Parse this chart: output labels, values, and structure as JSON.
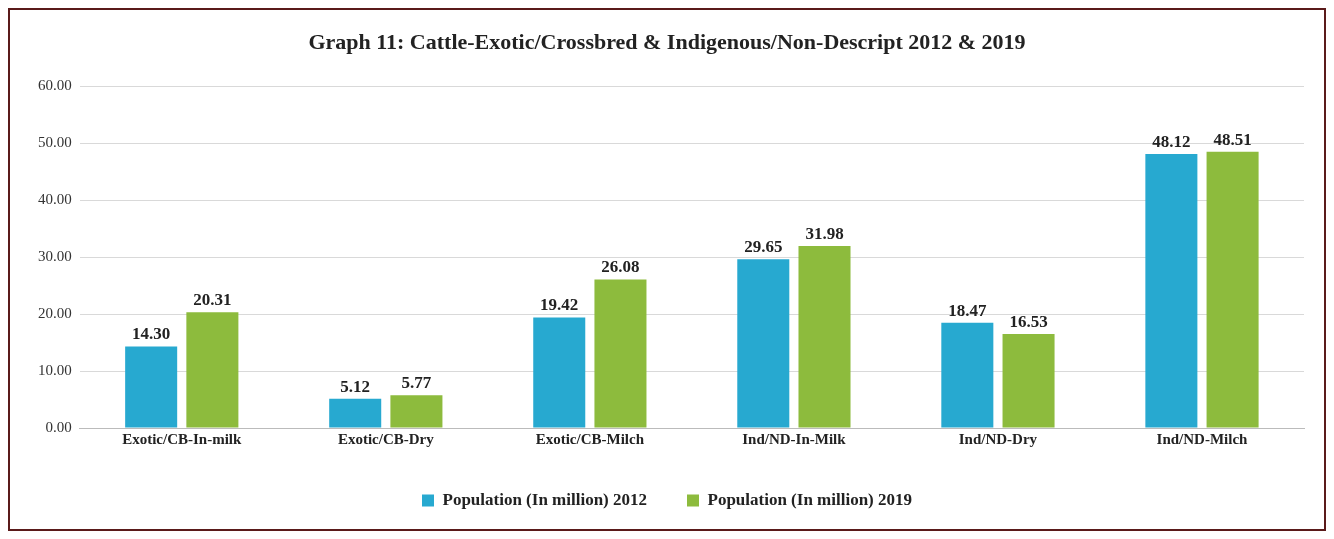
{
  "chart_data": {
    "type": "bar",
    "title": "Graph 11: Cattle-Exotic/Crossbred & Indigenous/Non-Descript 2012 & 2019",
    "categories": [
      "Exotic/CB-In-milk",
      "Exotic/CB-Dry",
      "Exotic/CB-Milch",
      "Ind/ND-In-Milk",
      "Ind/ND-Dry",
      "Ind/ND-Milch"
    ],
    "series": [
      {
        "name": "Population (In million) 2012",
        "color": "#27a9d0",
        "values": [
          14.3,
          5.12,
          19.42,
          29.65,
          18.47,
          48.12
        ],
        "value_labels": [
          "14.30",
          "5.12",
          "19.42",
          "29.65",
          "18.47",
          "48.12"
        ]
      },
      {
        "name": "Population (In million) 2019",
        "color": "#8dbb3d",
        "values": [
          20.31,
          5.77,
          26.08,
          31.98,
          16.53,
          48.51
        ],
        "value_labels": [
          "20.31",
          "5.77",
          "26.08",
          "31.98",
          "16.53",
          "48.51"
        ]
      }
    ],
    "ylim": [
      0,
      60
    ],
    "yticks": [
      {
        "value": 0,
        "label": "0.00"
      },
      {
        "value": 10,
        "label": "10.00"
      },
      {
        "value": 20,
        "label": "20.00"
      },
      {
        "value": 30,
        "label": "30.00"
      },
      {
        "value": 40,
        "label": "40.00"
      },
      {
        "value": 50,
        "label": "50.00"
      },
      {
        "value": 60,
        "label": "60.00"
      }
    ],
    "grid": "y",
    "legend": "bottom"
  }
}
